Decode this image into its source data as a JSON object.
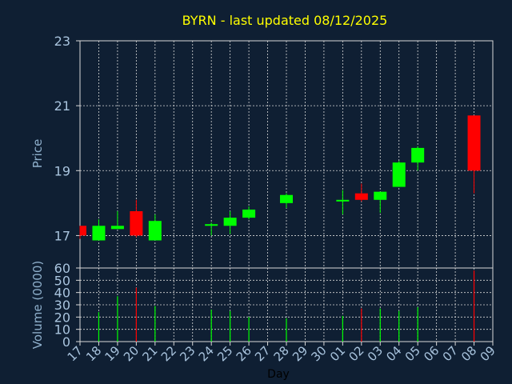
{
  "chart_data": [
    {
      "type": "candlestick",
      "title": "BYRN - last updated 08/12/2025",
      "xlabel": "Day",
      "ylabel": "Price",
      "ylim": [
        16,
        23
      ],
      "yticks": [
        17,
        19,
        21,
        23
      ],
      "grid": true,
      "colors": {
        "up": "#00ff00",
        "down": "#ff0000",
        "title": "#ffff00",
        "axis_text": "#a9c4de",
        "axis_label": "#8fb0cc",
        "background": "#0f1f33",
        "grid": "#d8d8d8"
      },
      "x_ticks": [
        "17",
        "18",
        "19",
        "20",
        "21",
        "22",
        "23",
        "24",
        "25",
        "26",
        "27",
        "28",
        "29",
        "30",
        "01",
        "02",
        "03",
        "04",
        "05",
        "06",
        "07",
        "08",
        "09"
      ],
      "candles": [
        {
          "day": "17",
          "open": 17.3,
          "high": 17.3,
          "low": 16.9,
          "close": 17.0
        },
        {
          "day": "18",
          "open": 16.85,
          "high": 17.5,
          "low": 16.85,
          "close": 17.3
        },
        {
          "day": "19",
          "open": 17.2,
          "high": 17.75,
          "low": 17.2,
          "close": 17.3
        },
        {
          "day": "20",
          "open": 17.75,
          "high": 18.1,
          "low": 16.95,
          "close": 17.0
        },
        {
          "day": "21",
          "open": 16.85,
          "high": 17.65,
          "low": 16.85,
          "close": 17.45
        },
        {
          "day": "24",
          "open": 17.3,
          "high": 17.4,
          "low": 17.0,
          "close": 17.35
        },
        {
          "day": "25",
          "open": 17.3,
          "high": 17.75,
          "low": 17.05,
          "close": 17.55
        },
        {
          "day": "26",
          "open": 17.55,
          "high": 17.9,
          "low": 17.5,
          "close": 17.8
        },
        {
          "day": "28",
          "open": 18.0,
          "high": 18.3,
          "low": 17.85,
          "close": 18.25
        },
        {
          "day": "01",
          "open": 18.05,
          "high": 18.4,
          "low": 17.65,
          "close": 18.1
        },
        {
          "day": "02",
          "open": 18.3,
          "high": 18.6,
          "low": 18.05,
          "close": 18.1
        },
        {
          "day": "03",
          "open": 18.1,
          "high": 18.35,
          "low": 17.7,
          "close": 18.35
        },
        {
          "day": "04",
          "open": 18.5,
          "high": 19.3,
          "low": 18.5,
          "close": 19.25
        },
        {
          "day": "05",
          "open": 19.25,
          "high": 19.75,
          "low": 19.0,
          "close": 19.7
        },
        {
          "day": "08",
          "open": 20.7,
          "high": 20.7,
          "low": 18.3,
          "close": 19.0
        }
      ]
    },
    {
      "type": "bar",
      "ylabel": "Volume (0000)",
      "ylim": [
        0,
        60
      ],
      "yticks": [
        0,
        10,
        20,
        30,
        40,
        50,
        60
      ],
      "grid": true,
      "bars": [
        {
          "day": "18",
          "value": 24,
          "color": "#00ff00"
        },
        {
          "day": "19",
          "value": 37,
          "color": "#00ff00"
        },
        {
          "day": "20",
          "value": 44,
          "color": "#ff0000"
        },
        {
          "day": "21",
          "value": 29,
          "color": "#00ff00"
        },
        {
          "day": "24",
          "value": 26,
          "color": "#00ff00"
        },
        {
          "day": "25",
          "value": 25,
          "color": "#00ff00"
        },
        {
          "day": "26",
          "value": 20,
          "color": "#00ff00"
        },
        {
          "day": "28",
          "value": 19,
          "color": "#00ff00"
        },
        {
          "day": "01",
          "value": 21,
          "color": "#00ff00"
        },
        {
          "day": "02",
          "value": 27,
          "color": "#ff0000"
        },
        {
          "day": "03",
          "value": 27,
          "color": "#00ff00"
        },
        {
          "day": "04",
          "value": 25,
          "color": "#00ff00"
        },
        {
          "day": "05",
          "value": 28,
          "color": "#00ff00"
        },
        {
          "day": "08",
          "value": 58,
          "color": "#ff0000"
        }
      ]
    }
  ]
}
